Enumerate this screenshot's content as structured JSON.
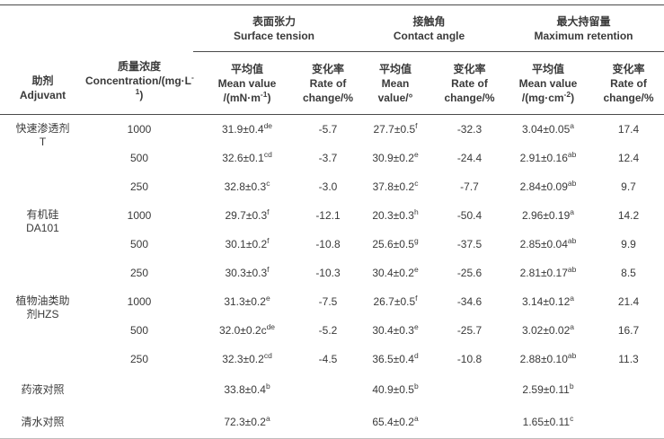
{
  "table": {
    "header": {
      "adjuvant": {
        "zh": "助剂",
        "en": "Adjuvant"
      },
      "concentration": {
        "zh": "质量浓度",
        "en_pre": "Concentration/(mg·L",
        "en_sup": "-1",
        "en_post": ")"
      },
      "groups": [
        {
          "zh": "表面张力",
          "en": "Surface tension"
        },
        {
          "zh": "接触角",
          "en": "Contact angle"
        },
        {
          "zh": "最大持留量",
          "en": "Maximum retention"
        }
      ],
      "st_mean": {
        "zh": "平均值",
        "l2": "Mean value",
        "unit_pre": "/(mN·m",
        "unit_sup": "-1",
        "unit_post": ")"
      },
      "st_rate": {
        "zh": "变化率",
        "l2": "Rate of",
        "l3": "change/%"
      },
      "ca_mean": {
        "zh": "平均值",
        "l2": "Mean",
        "l3": "value/°"
      },
      "ca_rate": {
        "zh": "变化率",
        "l2": "Rate of",
        "l3": "change/%"
      },
      "mr_mean": {
        "zh": "平均值",
        "l2": "Mean value",
        "unit_pre": "/(mg·cm",
        "unit_sup": "-2",
        "unit_post": ")"
      },
      "mr_rate": {
        "zh": "变化率",
        "l2": "Rate of",
        "l3": "change/%"
      }
    },
    "groups": [
      {
        "name_lines": [
          "快速渗透剂",
          "T"
        ],
        "rows": [
          {
            "conc": "1000",
            "st": {
              "base": "31.9±0.4",
              "sup": "de"
            },
            "st_rate": "-5.7",
            "ca": {
              "base": "27.7±0.5",
              "sup": "f"
            },
            "ca_rate": "-32.3",
            "mr": {
              "base": "3.04±0.05",
              "sup": "a"
            },
            "mr_rate": "17.4"
          },
          {
            "conc": "500",
            "st": {
              "base": "32.6±0.1",
              "sup": "cd"
            },
            "st_rate": "-3.7",
            "ca": {
              "base": "30.9±0.2",
              "sup": "e"
            },
            "ca_rate": "-24.4",
            "mr": {
              "base": "2.91±0.16",
              "sup": "ab"
            },
            "mr_rate": "12.4"
          },
          {
            "conc": "250",
            "st": {
              "base": "32.8±0.3",
              "sup": "c"
            },
            "st_rate": "-3.0",
            "ca": {
              "base": "37.8±0.2",
              "sup": "c"
            },
            "ca_rate": "-7.7",
            "mr": {
              "base": "2.84±0.09",
              "sup": "ab"
            },
            "mr_rate": "9.7"
          }
        ]
      },
      {
        "name_lines": [
          "有机硅",
          "DA101"
        ],
        "rows": [
          {
            "conc": "1000",
            "st": {
              "base": "29.7±0.3",
              "sup": "f"
            },
            "st_rate": "-12.1",
            "ca": {
              "base": "20.3±0.3",
              "sup": "h"
            },
            "ca_rate": "-50.4",
            "mr": {
              "base": "2.96±0.19",
              "sup": "a"
            },
            "mr_rate": "14.2"
          },
          {
            "conc": "500",
            "st": {
              "base": "30.1±0.2",
              "sup": "f"
            },
            "st_rate": "-10.8",
            "ca": {
              "base": "25.6±0.5",
              "sup": "g"
            },
            "ca_rate": "-37.5",
            "mr": {
              "base": "2.85±0.04",
              "sup": "ab"
            },
            "mr_rate": "9.9"
          },
          {
            "conc": "250",
            "st": {
              "base": "30.3±0.3",
              "sup": "f"
            },
            "st_rate": "-10.3",
            "ca": {
              "base": "30.4±0.2",
              "sup": "e"
            },
            "ca_rate": "-25.6",
            "mr": {
              "base": "2.81±0.17",
              "sup": "ab"
            },
            "mr_rate": "8.5"
          }
        ]
      },
      {
        "name_lines": [
          "植物油类助",
          "剂HZS"
        ],
        "rows": [
          {
            "conc": "1000",
            "st": {
              "base": "31.3±0.2",
              "sup": "e"
            },
            "st_rate": "-7.5",
            "ca": {
              "base": "26.7±0.5",
              "sup": "f"
            },
            "ca_rate": "-34.6",
            "mr": {
              "base": "3.14±0.12",
              "sup": "a"
            },
            "mr_rate": "21.4"
          },
          {
            "conc": "500",
            "st": {
              "base": "32.0±0.2c",
              "sup": "de"
            },
            "st_rate": "-5.2",
            "ca": {
              "base": "30.4±0.3",
              "sup": "e"
            },
            "ca_rate": "-25.7",
            "mr": {
              "base": "3.02±0.02",
              "sup": "a"
            },
            "mr_rate": "16.7"
          },
          {
            "conc": "250",
            "st": {
              "base": "32.3±0.2",
              "sup": "cd"
            },
            "st_rate": "-4.5",
            "ca": {
              "base": "36.5±0.4",
              "sup": "d"
            },
            "ca_rate": "-10.8",
            "mr": {
              "base": "2.88±0.10",
              "sup": "ab"
            },
            "mr_rate": "11.3"
          }
        ]
      }
    ],
    "control_rows": [
      {
        "label": "药液对照",
        "st": {
          "base": "33.8±0.4",
          "sup": "b"
        },
        "ca": {
          "base": "40.9±0.5",
          "sup": "b"
        },
        "mr": {
          "base": "2.59±0.11",
          "sup": "b"
        }
      },
      {
        "label": "清水对照",
        "st": {
          "base": "72.3±0.2",
          "sup": "a"
        },
        "ca": {
          "base": "65.4±0.2",
          "sup": "a"
        },
        "mr": {
          "base": "1.65±0.11",
          "sup": "c"
        }
      }
    ]
  }
}
